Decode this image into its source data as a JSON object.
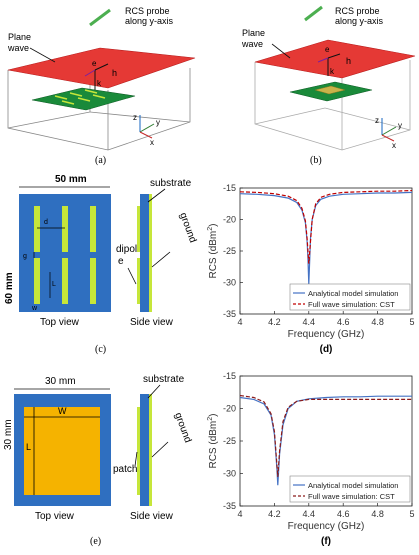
{
  "panel_a": {
    "probe": [
      "RCS probe",
      "along y-axis"
    ],
    "plane_wave": [
      "Plane",
      "wave"
    ],
    "e": "e",
    "h": "h",
    "k": "k",
    "axes": {
      "z": "z",
      "y": "y",
      "x": "x"
    },
    "caption": "(a)"
  },
  "panel_b": {
    "probe": [
      "RCS probe",
      "along y-axis"
    ],
    "plane_wave": [
      "Plane",
      "wave"
    ],
    "e": "e",
    "h": "h",
    "k": "k",
    "axes": {
      "z": "z",
      "y": "y",
      "x": "x"
    },
    "caption": "(b)"
  },
  "panel_c": {
    "width": "50 mm",
    "height": "60 mm",
    "d": "d",
    "g": "g",
    "L": "L",
    "w": "w",
    "substrate": "substrate",
    "ground": "ground",
    "dipole": [
      "dipol",
      "e"
    ],
    "top_view": "Top view",
    "side_view": "Side view",
    "caption": "(c)"
  },
  "panel_e": {
    "width": "30 mm",
    "height": "30 mm",
    "W": "W",
    "L": "L",
    "substrate": "substrate",
    "ground": "ground",
    "patch": "patch",
    "top_view": "Top view",
    "side_view": "Side view",
    "caption": "(e)"
  },
  "colors": {
    "plane": "#e53935",
    "board": "#1a8a3a",
    "blue": "#2f6fc0",
    "yellowgreen": "#c6e63a",
    "patch": "#f5b300",
    "probe": "#4caf50",
    "series1": "#4472c4",
    "series2": "#c00000"
  },
  "chart_data": [
    {
      "id": "d",
      "type": "line",
      "xlabel": "Frequency (GHz)",
      "ylabel": "RCS (dBm",
      "ylabel_sup": "2",
      "ylabel_end": ")",
      "xlim": [
        4,
        5
      ],
      "ylim": [
        -35,
        -15
      ],
      "xticks": [
        "4",
        "4.2",
        "4.4",
        "4.6",
        "4.8",
        "5"
      ],
      "yticks": [
        "-15",
        "-20",
        "-25",
        "-30",
        "-35"
      ],
      "series": [
        {
          "name": "Analytical model simulation",
          "style": "solid",
          "color": "#4472c4",
          "x": [
            4.0,
            4.1,
            4.2,
            4.28,
            4.33,
            4.36,
            4.38,
            4.39,
            4.395,
            4.4,
            4.405,
            4.41,
            4.42,
            4.44,
            4.47,
            4.52,
            4.6,
            4.7,
            4.8,
            4.9,
            5.0
          ],
          "y": [
            -15.9,
            -16.0,
            -16.2,
            -16.6,
            -17.3,
            -18.5,
            -20.5,
            -23.5,
            -26.0,
            -30.3,
            -26.5,
            -23.0,
            -20.0,
            -17.8,
            -16.8,
            -16.3,
            -16.0,
            -15.9,
            -15.8,
            -15.8,
            -15.7
          ]
        },
        {
          "name": "Full wave simulation: CST",
          "style": "dashed",
          "color": "#c00000",
          "x": [
            4.0,
            4.1,
            4.2,
            4.28,
            4.33,
            4.36,
            4.38,
            4.39,
            4.4,
            4.41,
            4.42,
            4.44,
            4.47,
            4.52,
            4.6,
            4.7,
            4.8,
            4.9,
            5.0
          ],
          "y": [
            -15.6,
            -15.7,
            -15.9,
            -16.3,
            -17.0,
            -18.2,
            -20.2,
            -23.0,
            -27.0,
            -23.5,
            -20.0,
            -17.5,
            -16.5,
            -16.0,
            -15.7,
            -15.6,
            -15.5,
            -15.5,
            -15.4
          ]
        }
      ],
      "legend": "bottom-right",
      "caption": "(d)"
    },
    {
      "id": "f",
      "type": "line",
      "xlabel": "Frequency (GHz)",
      "ylabel": "RCS (dBm",
      "ylabel_sup": "2",
      "ylabel_end": ")",
      "xlim": [
        4,
        5
      ],
      "ylim": [
        -35,
        -15
      ],
      "xticks": [
        "4",
        "4.2",
        "4.4",
        "4.6",
        "4.8",
        "5"
      ],
      "yticks": [
        "-15",
        "-20",
        "-25",
        "-30",
        "-35"
      ],
      "series": [
        {
          "name": "Analytical model simulation",
          "style": "solid",
          "color": "#4472c4",
          "x": [
            4.0,
            4.08,
            4.14,
            4.18,
            4.2,
            4.21,
            4.215,
            4.22,
            4.23,
            4.25,
            4.28,
            4.33,
            4.4,
            4.5,
            4.6,
            4.7,
            4.8,
            4.9,
            5.0
          ],
          "y": [
            -18.3,
            -18.6,
            -19.3,
            -21.0,
            -24.0,
            -27.5,
            -29.5,
            -31.8,
            -27.0,
            -22.5,
            -20.0,
            -18.9,
            -18.5,
            -18.3,
            -18.2,
            -18.2,
            -18.1,
            -18.1,
            -18.1
          ]
        },
        {
          "name": "Full wave simulation: CST",
          "style": "dashed",
          "color": "#8b1a1a",
          "x": [
            4.0,
            4.08,
            4.14,
            4.18,
            4.2,
            4.21,
            4.22,
            4.23,
            4.25,
            4.28,
            4.33,
            4.4,
            4.5,
            4.6,
            4.7,
            4.8,
            4.9,
            5.0
          ],
          "y": [
            -18.0,
            -18.3,
            -19.0,
            -20.8,
            -23.5,
            -27.0,
            -30.5,
            -26.5,
            -22.0,
            -19.8,
            -18.9,
            -18.6,
            -18.6,
            -18.6,
            -18.6,
            -18.6,
            -18.6,
            -18.6
          ]
        }
      ],
      "legend": "bottom-right",
      "caption": "(f)"
    }
  ]
}
